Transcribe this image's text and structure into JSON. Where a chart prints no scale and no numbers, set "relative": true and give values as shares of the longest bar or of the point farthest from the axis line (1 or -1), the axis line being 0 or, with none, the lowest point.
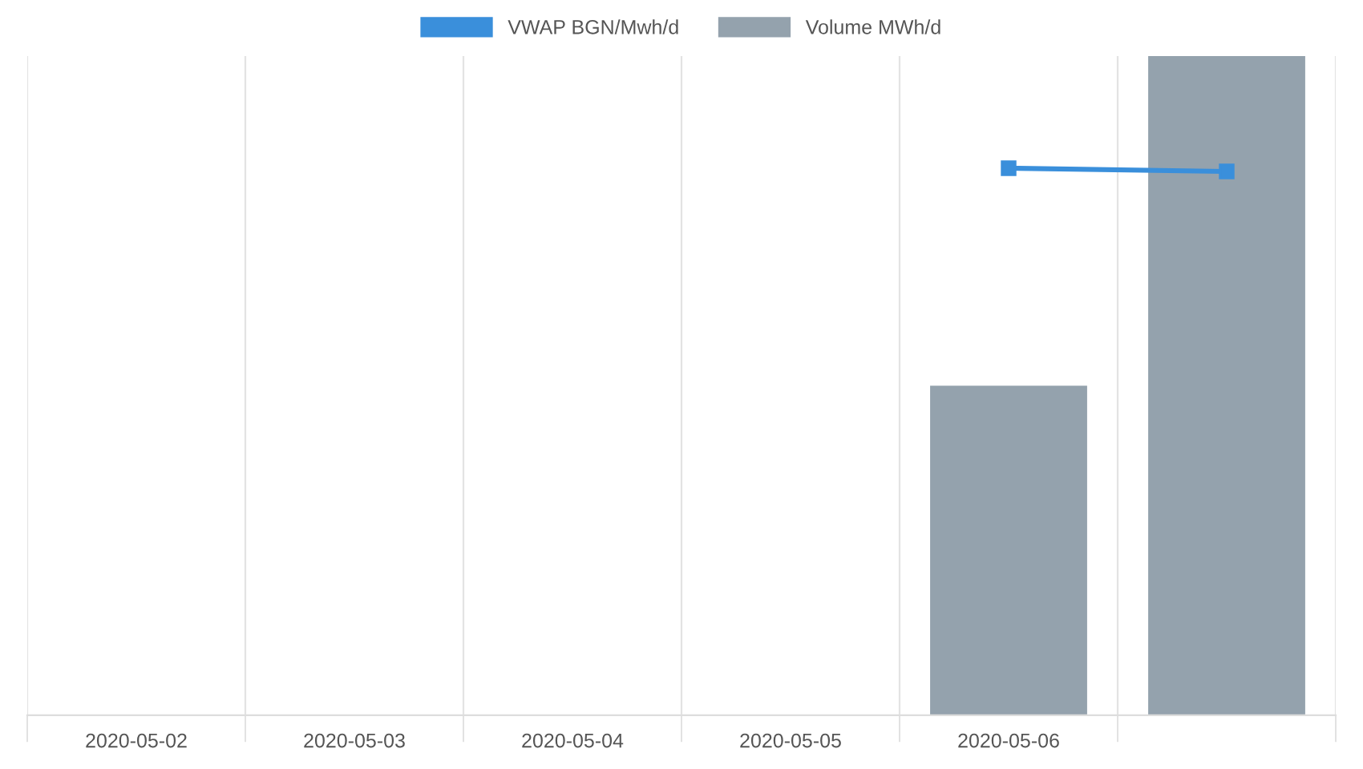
{
  "chart_data": {
    "type": "bar",
    "relative": true,
    "categories": [
      "2020-05-02",
      "2020-05-03",
      "2020-05-04",
      "2020-05-05",
      "2020-05-06",
      null
    ],
    "series": [
      {
        "name": "VWAP BGN/Mwh/d",
        "type": "line",
        "color": "#3a8fdb",
        "marker": "square",
        "values": [
          null,
          null,
          null,
          null,
          0.83,
          0.825
        ]
      },
      {
        "name": "Volume MWh/d",
        "color": "#94a2ad",
        "values": [
          null,
          null,
          null,
          null,
          0.5,
          1
        ]
      }
    ],
    "grid": "x",
    "legend": "top"
  }
}
